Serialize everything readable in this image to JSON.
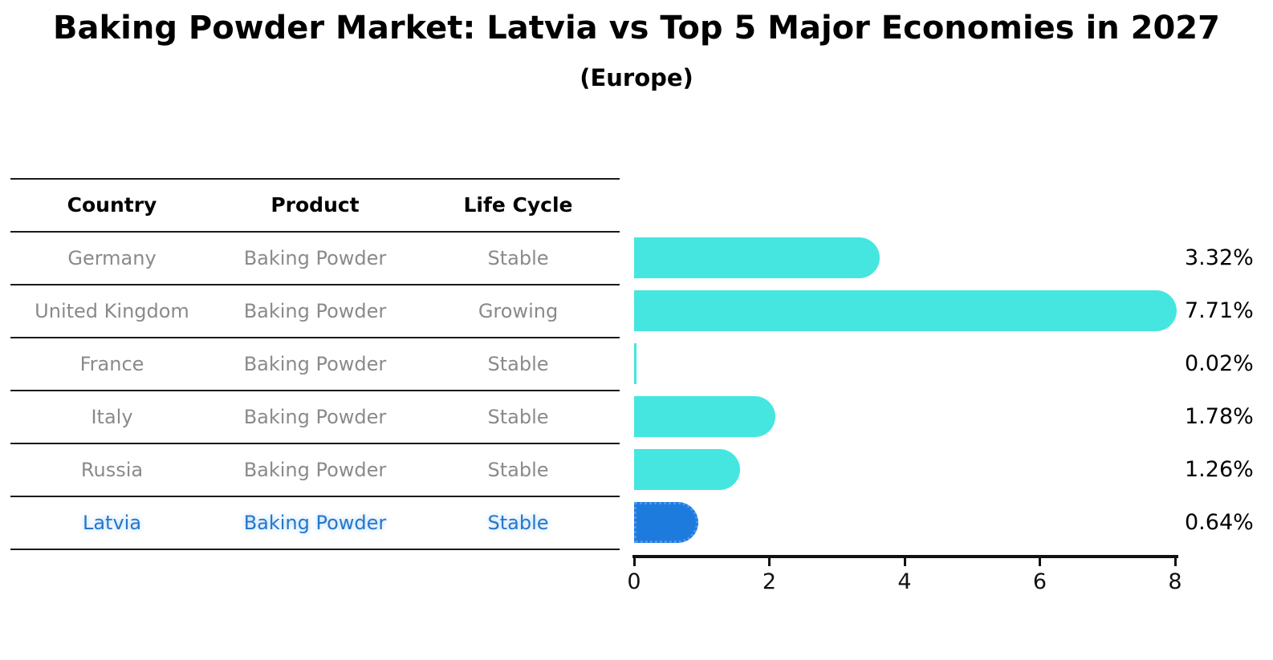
{
  "header": {
    "title": "Baking Powder Market: Latvia vs Top 5 Major Economies in 2027",
    "subtitle": "(Europe)"
  },
  "table": {
    "columns": [
      "Country",
      "Product",
      "Life Cycle"
    ],
    "rows": [
      {
        "country": "Germany",
        "product": "Baking Powder",
        "life_cycle": "Stable",
        "highlight": false
      },
      {
        "country": "United Kingdom",
        "product": "Baking Powder",
        "life_cycle": "Growing",
        "highlight": false
      },
      {
        "country": "France",
        "product": "Baking Powder",
        "life_cycle": "Stable",
        "highlight": false
      },
      {
        "country": "Italy",
        "product": "Baking Powder",
        "life_cycle": "Stable",
        "highlight": false
      },
      {
        "country": "Russia",
        "product": "Baking Powder",
        "life_cycle": "Stable",
        "highlight": false
      },
      {
        "country": "Latvia",
        "product": "Baking Powder",
        "life_cycle": "Stable",
        "highlight": true
      }
    ]
  },
  "chart_data": {
    "type": "bar",
    "orientation": "horizontal",
    "title": "Baking Powder Market: Latvia vs Top 5 Major Economies in 2027",
    "subtitle": "(Europe)",
    "categories": [
      "Germany",
      "United Kingdom",
      "France",
      "Italy",
      "Russia",
      "Latvia"
    ],
    "values": [
      3.32,
      7.71,
      0.02,
      1.78,
      1.26,
      0.64
    ],
    "value_labels": [
      "3.32%",
      "7.71%",
      "0.02%",
      "1.78%",
      "1.26%",
      "0.64%"
    ],
    "xlim": [
      0,
      8
    ],
    "xticks": [
      0,
      2,
      4,
      6,
      8
    ],
    "grid": false,
    "legend": "none",
    "highlight_category": "Latvia"
  },
  "colors": {
    "bar_default": "#45E6E0",
    "bar_highlight": "#1E7BDE",
    "highlight_text": "#2577CB",
    "table_text": "#8a8a8a",
    "axis": "#111111",
    "label_text": "#000000"
  }
}
